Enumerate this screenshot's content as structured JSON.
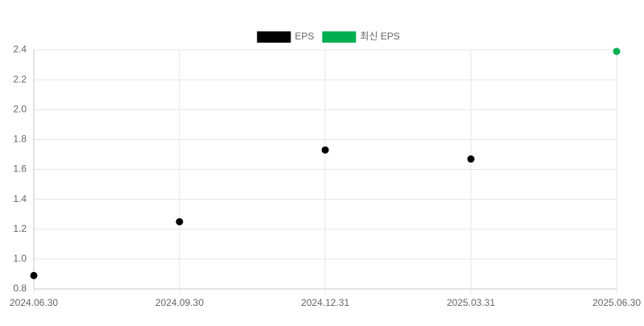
{
  "chart_data": {
    "type": "scatter",
    "categories": [
      "2024.06.30",
      "2024.09.30",
      "2024.12.31",
      "2025.03.31",
      "2025.06.30"
    ],
    "series": [
      {
        "name": "EPS",
        "color": "#000000",
        "values": [
          0.89,
          1.25,
          1.73,
          1.67,
          null
        ]
      },
      {
        "name": "최신 EPS",
        "color": "#00b050",
        "values": [
          null,
          null,
          null,
          null,
          2.39
        ]
      }
    ],
    "ylim": [
      0.8,
      2.4
    ],
    "yticks": [
      0.8,
      {
        "value": 1,
        "label": "1.0"
      },
      1.2,
      1.4,
      1.6,
      1.8,
      {
        "value": 2,
        "label": "2.0"
      },
      2.2,
      2.4
    ],
    "grid": true,
    "legend": "top"
  }
}
